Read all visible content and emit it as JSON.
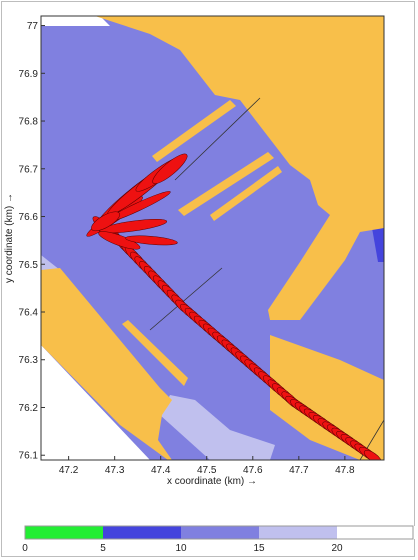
{
  "chart_data": {
    "type": "map",
    "xlabel": "x coordinate (km) →",
    "ylabel": "y coordinate (km) →",
    "xlim": [
      47.14,
      47.885
    ],
    "ylim": [
      76.09,
      77.02
    ],
    "xticks": [
      "47.2",
      "47.3",
      "47.4",
      "47.5",
      "47.6",
      "47.7",
      "47.8"
    ],
    "yticks": [
      "76.1",
      "76.2",
      "76.3",
      "76.4",
      "76.5",
      "76.6",
      "76.7",
      "76.8",
      "76.9",
      "77"
    ],
    "colors": {
      "land": "#f8bf4a",
      "depth_5_10": "#4444dd",
      "depth_10_15": "#8080e0",
      "depth_15_20": "#c0c0ee",
      "depth_20_plus": "#ffffff",
      "depth_0_5": "#22ee33",
      "track": "#ee1111"
    },
    "colorbar": {
      "ticks": [
        "0",
        "5",
        "10",
        "15",
        "20"
      ],
      "segments": [
        {
          "from": 0,
          "to": 5,
          "color": "#22ee33"
        },
        {
          "from": 5,
          "to": 10,
          "color": "#4444dd"
        },
        {
          "from": 10,
          "to": 15,
          "color": "#8080e0"
        },
        {
          "from": 15,
          "to": 20,
          "color": "#c0c0ee"
        },
        {
          "from": 20,
          "to": 25,
          "color": "#ffffff"
        }
      ]
    }
  }
}
